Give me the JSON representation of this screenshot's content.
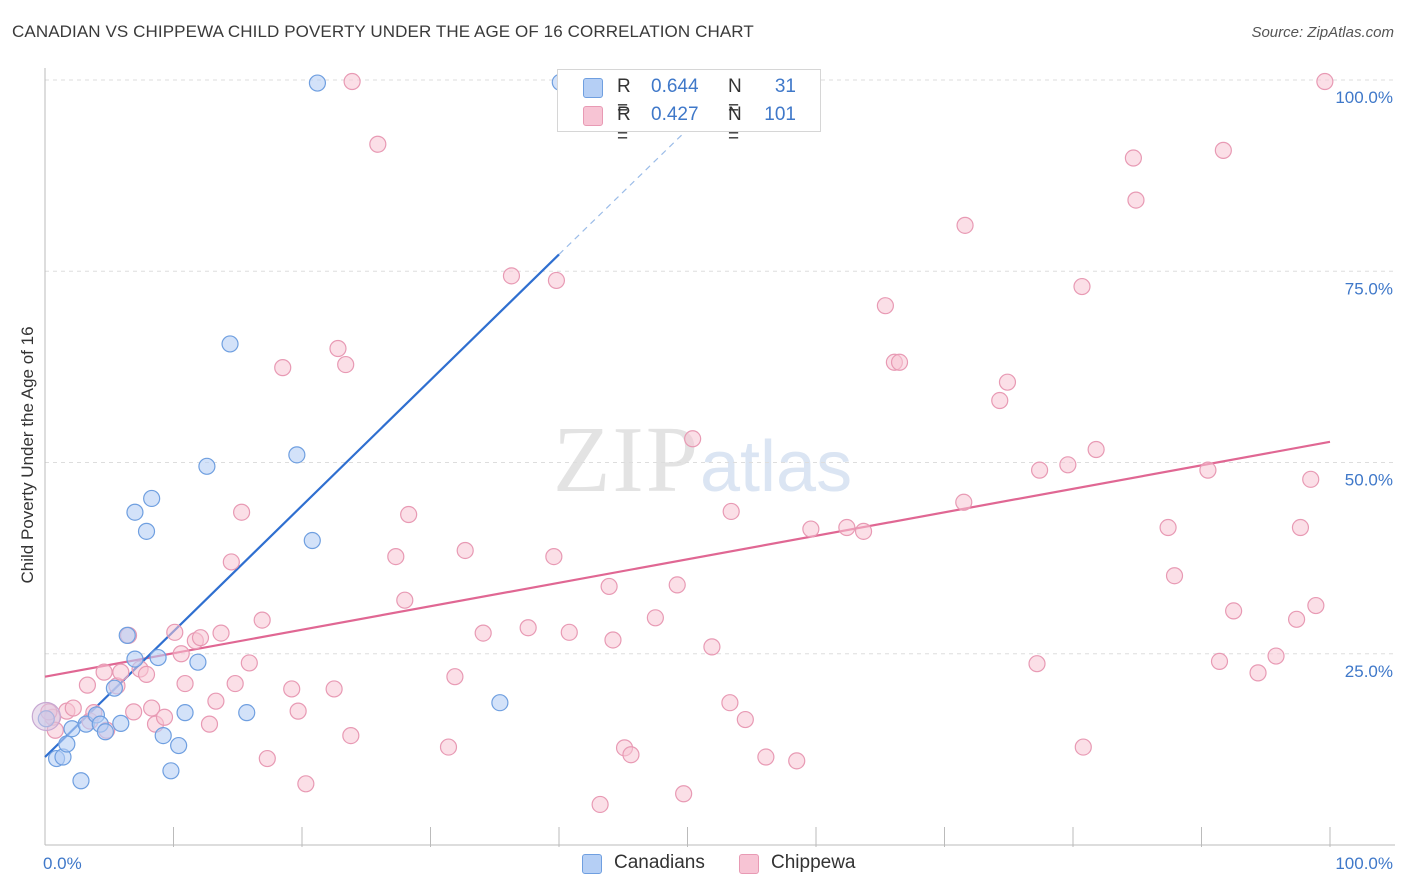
{
  "title": "CANADIAN VS CHIPPEWA CHILD POVERTY UNDER THE AGE OF 16 CORRELATION CHART",
  "source": "Source: ZipAtlas.com",
  "watermark": {
    "zip": "ZIP",
    "atlas": "atlas"
  },
  "legend_top": {
    "rows": [
      {
        "series": "Canadians",
        "r_label": "R =",
        "r_value": "0.644",
        "n_label": "N =",
        "n_value": "31"
      },
      {
        "series": "Chippewa",
        "r_label": "R =",
        "r_value": "0.427",
        "n_label": "N =",
        "n_value": "101"
      }
    ]
  },
  "legend_bottom": {
    "canadians": "Canadians",
    "chippewa": "Chippewa"
  },
  "colors": {
    "canadians_fill": "#b5cff5",
    "canadians_stroke": "#6f9fe0",
    "canadians_line": "#2f6fd0",
    "chippewa_fill": "#f7c4d4",
    "chippewa_stroke": "#e89ab4",
    "chippewa_line": "#e06793",
    "value_text": "#3f78c9",
    "grid": "#dddddd"
  },
  "chart_data": {
    "type": "scatter",
    "title": "CANADIAN VS CHIPPEWA CHILD POVERTY UNDER THE AGE OF 16 CORRELATION CHART",
    "xlabel": "",
    "ylabel": "Child Poverty Under the Age of 16",
    "xlim": [
      0,
      100
    ],
    "ylim": [
      0,
      100
    ],
    "x_tick_labels": [
      "0.0%",
      "100.0%"
    ],
    "y_ticks": [
      25,
      50,
      75,
      100
    ],
    "y_tick_labels": [
      "25.0%",
      "50.0%",
      "75.0%",
      "100.0%"
    ],
    "grid": true,
    "legend_position": "top-center",
    "series": [
      {
        "name": "Canadians",
        "r": 0.644,
        "n": 31,
        "trend": {
          "x0": 0,
          "y0": 11.5,
          "x1": 40,
          "y1": 77.2,
          "dash_to_x": 51.5,
          "dash_to_y": 96.0
        },
        "points": [
          [
            0.1,
            16.5
          ],
          [
            0.9,
            11.3
          ],
          [
            1.4,
            11.5
          ],
          [
            1.7,
            13.2
          ],
          [
            2.1,
            15.2
          ],
          [
            2.8,
            8.4
          ],
          [
            3.2,
            15.8
          ],
          [
            4.0,
            17.0
          ],
          [
            4.3,
            15.8
          ],
          [
            4.7,
            14.8
          ],
          [
            5.4,
            20.5
          ],
          [
            5.9,
            15.9
          ],
          [
            6.4,
            27.4
          ],
          [
            7.0,
            24.3
          ],
          [
            7.0,
            43.5
          ],
          [
            7.9,
            41.0
          ],
          [
            8.3,
            45.3
          ],
          [
            8.8,
            24.5
          ],
          [
            9.2,
            14.3
          ],
          [
            9.8,
            9.7
          ],
          [
            10.4,
            13.0
          ],
          [
            10.9,
            17.3
          ],
          [
            11.9,
            23.9
          ],
          [
            12.6,
            49.5
          ],
          [
            14.4,
            65.5
          ],
          [
            15.7,
            17.3
          ],
          [
            19.6,
            51.0
          ],
          [
            20.8,
            39.8
          ],
          [
            21.2,
            99.6
          ],
          [
            35.4,
            18.6
          ],
          [
            40.1,
            99.7
          ]
        ]
      },
      {
        "name": "Chippewa",
        "r": 0.427,
        "n": 101,
        "trend": {
          "x0": 0,
          "y0": 22.0,
          "x1": 100,
          "y1": 52.7
        },
        "points": [
          [
            0.6,
            16.7
          ],
          [
            0.8,
            15.0
          ],
          [
            1.7,
            17.5
          ],
          [
            2.2,
            17.9
          ],
          [
            3.3,
            20.9
          ],
          [
            3.5,
            16.2
          ],
          [
            3.8,
            17.3
          ],
          [
            4.6,
            22.6
          ],
          [
            4.8,
            15.0
          ],
          [
            5.6,
            20.8
          ],
          [
            5.9,
            22.6
          ],
          [
            6.5,
            27.4
          ],
          [
            6.9,
            17.4
          ],
          [
            7.4,
            23.0
          ],
          [
            7.9,
            22.3
          ],
          [
            8.3,
            17.9
          ],
          [
            8.6,
            15.8
          ],
          [
            9.3,
            16.7
          ],
          [
            10.1,
            27.8
          ],
          [
            10.6,
            25.0
          ],
          [
            10.9,
            21.1
          ],
          [
            11.7,
            26.7
          ],
          [
            12.1,
            27.1
          ],
          [
            12.8,
            15.8
          ],
          [
            13.3,
            18.8
          ],
          [
            13.7,
            27.7
          ],
          [
            14.5,
            37.0
          ],
          [
            14.8,
            21.1
          ],
          [
            15.3,
            43.5
          ],
          [
            15.9,
            23.8
          ],
          [
            16.9,
            29.4
          ],
          [
            17.3,
            11.3
          ],
          [
            18.5,
            62.4
          ],
          [
            19.2,
            20.4
          ],
          [
            19.7,
            17.5
          ],
          [
            20.3,
            8.0
          ],
          [
            22.5,
            20.4
          ],
          [
            22.8,
            64.9
          ],
          [
            23.4,
            62.8
          ],
          [
            23.8,
            14.3
          ],
          [
            23.9,
            99.8
          ],
          [
            25.9,
            91.6
          ],
          [
            27.3,
            37.7
          ],
          [
            28.0,
            32.0
          ],
          [
            28.3,
            43.2
          ],
          [
            31.4,
            12.8
          ],
          [
            31.9,
            22.0
          ],
          [
            32.7,
            38.5
          ],
          [
            34.1,
            27.7
          ],
          [
            36.3,
            74.4
          ],
          [
            37.6,
            28.4
          ],
          [
            39.6,
            37.7
          ],
          [
            39.8,
            73.8
          ],
          [
            40.8,
            27.8
          ],
          [
            43.2,
            5.3
          ],
          [
            43.9,
            33.8
          ],
          [
            44.2,
            26.8
          ],
          [
            45.1,
            12.7
          ],
          [
            45.6,
            11.8
          ],
          [
            47.5,
            29.7
          ],
          [
            49.2,
            34.0
          ],
          [
            49.7,
            6.7
          ],
          [
            50.4,
            53.1
          ],
          [
            51.9,
            25.9
          ],
          [
            53.3,
            18.6
          ],
          [
            53.4,
            43.6
          ],
          [
            54.5,
            16.4
          ],
          [
            56.1,
            11.5
          ],
          [
            58.5,
            11.0
          ],
          [
            59.6,
            41.3
          ],
          [
            62.4,
            41.5
          ],
          [
            63.7,
            41.0
          ],
          [
            65.4,
            70.5
          ],
          [
            66.1,
            63.1
          ],
          [
            66.5,
            63.1
          ],
          [
            71.6,
            81.0
          ],
          [
            71.5,
            44.8
          ],
          [
            74.3,
            58.1
          ],
          [
            74.9,
            60.5
          ],
          [
            77.2,
            23.7
          ],
          [
            77.4,
            49.0
          ],
          [
            79.6,
            49.7
          ],
          [
            80.7,
            73.0
          ],
          [
            80.8,
            12.8
          ],
          [
            81.8,
            51.7
          ],
          [
            84.7,
            89.8
          ],
          [
            84.9,
            84.3
          ],
          [
            87.4,
            41.5
          ],
          [
            87.9,
            35.2
          ],
          [
            90.5,
            49.0
          ],
          [
            91.4,
            24.0
          ],
          [
            91.7,
            90.8
          ],
          [
            92.5,
            30.6
          ],
          [
            94.4,
            22.5
          ],
          [
            95.8,
            24.7
          ],
          [
            97.4,
            29.5
          ],
          [
            97.7,
            41.5
          ],
          [
            98.5,
            47.8
          ],
          [
            98.9,
            31.3
          ],
          [
            99.6,
            99.8
          ],
          [
            0.3,
            17.4
          ]
        ]
      }
    ]
  }
}
